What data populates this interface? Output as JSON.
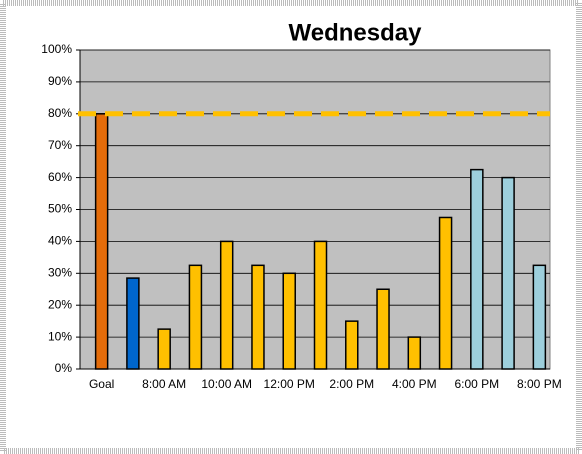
{
  "chart_data": {
    "type": "bar",
    "title": "Wednesday",
    "categories": [
      "Goal",
      null,
      "8:00 AM",
      null,
      "10:00 AM",
      null,
      "12:00 PM",
      null,
      "2:00 PM",
      null,
      "4:00 PM",
      null,
      "6:00 PM",
      null,
      "8:00 PM"
    ],
    "values": [
      80,
      28.5,
      12.5,
      32.5,
      40,
      32.5,
      30,
      40,
      15,
      25,
      10,
      47.5,
      62.5,
      60,
      32.5
    ],
    "colors": [
      "#e46c0a",
      "#0066cc",
      "#ffc000",
      "#ffc000",
      "#ffc000",
      "#ffc000",
      "#ffc000",
      "#ffc000",
      "#ffc000",
      "#ffc000",
      "#ffc000",
      "#ffc000",
      "#9dcfdc",
      "#9dcfdc",
      "#9dcfdc"
    ],
    "goal_line": {
      "value": 80,
      "color": "#ffc000"
    },
    "ylim": [
      0,
      100
    ],
    "yticks": [
      {
        "value": 0,
        "label": "0%"
      },
      {
        "value": 10,
        "label": "10%"
      },
      {
        "value": 20,
        "label": "20%"
      },
      {
        "value": 30,
        "label": "30%"
      },
      {
        "value": 40,
        "label": "40%"
      },
      {
        "value": 50,
        "label": "50%"
      },
      {
        "value": 60,
        "label": "60%"
      },
      {
        "value": 70,
        "label": "70%"
      },
      {
        "value": 80,
        "label": "80%"
      },
      {
        "value": 90,
        "label": "90%"
      },
      {
        "value": 100,
        "label": "100%"
      }
    ],
    "grid": true
  }
}
